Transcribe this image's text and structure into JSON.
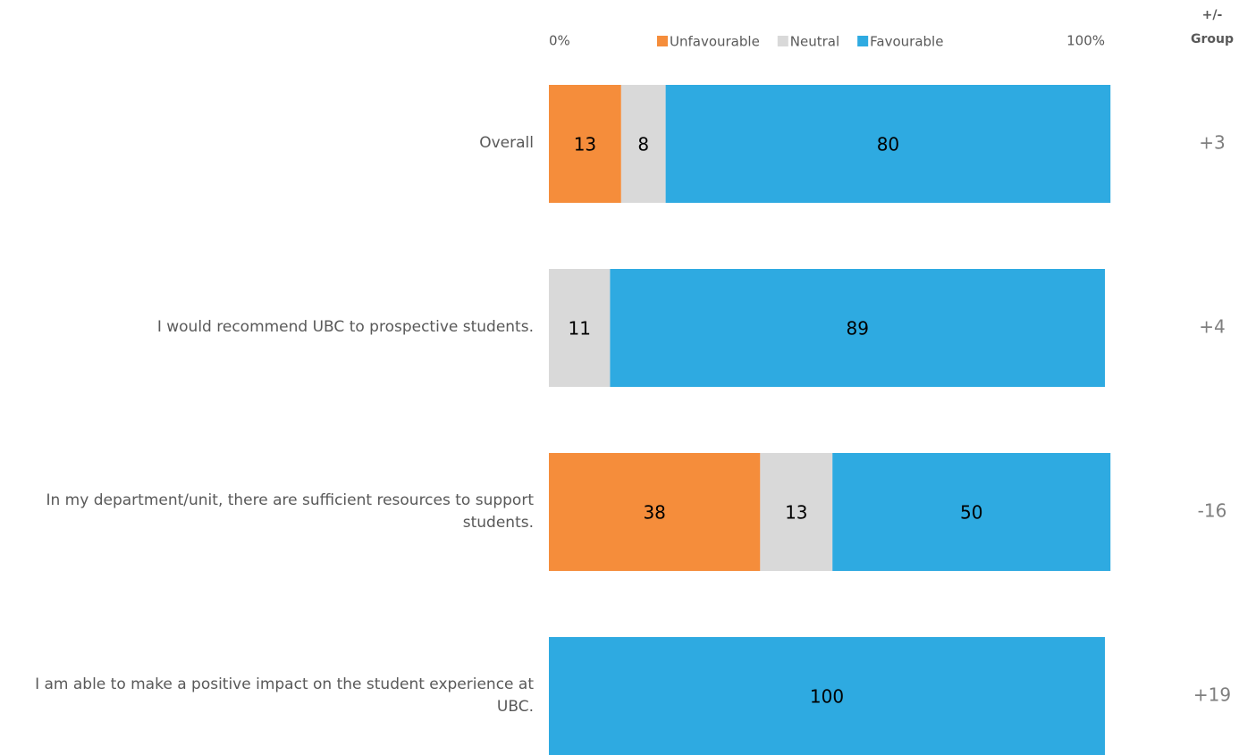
{
  "chart_data": {
    "type": "stacked_bar_horizontal",
    "categories": [
      "Overall",
      "I would recommend UBC to prospective students.",
      "In my department/unit, there are sufficient resources to support students.",
      "I am able to make a positive impact on the student experience at UBC."
    ],
    "series": [
      {
        "name": "Unfavourable",
        "color": "#f58d3b",
        "values": [
          13,
          null,
          38,
          null
        ]
      },
      {
        "name": "Neutral",
        "color": "#d9d9d9",
        "values": [
          8,
          11,
          13,
          null
        ]
      },
      {
        "name": "Favourable",
        "color": "#2eaae1",
        "values": [
          80,
          89,
          50,
          100
        ]
      }
    ],
    "xlim": [
      0,
      100
    ],
    "xticks": [
      {
        "value": 0,
        "label": "0%"
      },
      {
        "value": 100,
        "label": "100%"
      }
    ],
    "group_header": [
      "+/-",
      "Group"
    ],
    "group_diff": {
      "values": [
        3,
        4,
        -16,
        19
      ],
      "value_labels": [
        "+3",
        "+4",
        "-16",
        "+19"
      ]
    }
  }
}
